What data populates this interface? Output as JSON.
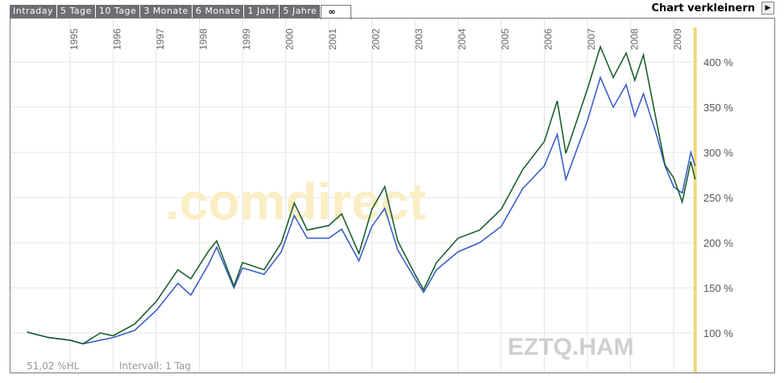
{
  "tabs": [
    "Intraday",
    "5 Tage",
    "10 Tage",
    "3 Monate",
    "6 Monate",
    "1 Jahr",
    "5 Jahre",
    "∞"
  ],
  "active_tab": "∞",
  "shrink_label": "Chart verkleinern",
  "watermark": ".comdirect",
  "symbol": "EZTQ.HAM",
  "footer": {
    "hl": "51,02 %HL",
    "interval": "Intervall: 1 Tag"
  },
  "colors": {
    "series1": "#1b5e2e",
    "series2": "#3a5fc8",
    "marker": "#f0d77a",
    "grid": "#e3e3e3"
  },
  "chart_data": {
    "type": "line",
    "xlim": [
      1993.6,
      2011.2
    ],
    "ylim": [
      55,
      449
    ],
    "x_ticks": [
      "1995",
      "1996",
      "1997",
      "1998",
      "1999",
      "2000",
      "2001",
      "2002",
      "2003",
      "2004",
      "2005",
      "2006",
      "2007",
      "2008",
      "2009"
    ],
    "y_ticks": [
      {
        "v": 100,
        "label": "100 %"
      },
      {
        "v": 150,
        "label": "150 %"
      },
      {
        "v": 200,
        "label": "200 %"
      },
      {
        "v": 250,
        "label": "250 %"
      },
      {
        "v": 300,
        "label": "300 %"
      },
      {
        "v": 350,
        "label": "350 %"
      },
      {
        "v": 400,
        "label": "400 %"
      }
    ],
    "grid": true,
    "marker_x": 2009.5,
    "series": [
      {
        "color": "#1b5e2e",
        "points": [
          [
            1994.0,
            101
          ],
          [
            1994.5,
            95
          ],
          [
            1995.0,
            92
          ],
          [
            1995.3,
            88
          ],
          [
            1995.7,
            100
          ],
          [
            1996.0,
            97
          ],
          [
            1996.5,
            110
          ],
          [
            1997.0,
            135
          ],
          [
            1997.5,
            170
          ],
          [
            1997.8,
            160
          ],
          [
            1998.2,
            190
          ],
          [
            1998.4,
            202
          ],
          [
            1998.8,
            152
          ],
          [
            1999.0,
            178
          ],
          [
            1999.5,
            170
          ],
          [
            1999.9,
            200
          ],
          [
            2000.2,
            244
          ],
          [
            2000.5,
            214
          ],
          [
            2001.0,
            219
          ],
          [
            2001.3,
            232
          ],
          [
            2001.7,
            188
          ],
          [
            2002.0,
            237
          ],
          [
            2002.3,
            262
          ],
          [
            2002.6,
            202
          ],
          [
            2003.0,
            165
          ],
          [
            2003.2,
            148
          ],
          [
            2003.5,
            178
          ],
          [
            2004.0,
            205
          ],
          [
            2004.5,
            214
          ],
          [
            2005.0,
            237
          ],
          [
            2005.5,
            281
          ],
          [
            2006.0,
            312
          ],
          [
            2006.3,
            357
          ],
          [
            2006.5,
            299
          ],
          [
            2007.0,
            370
          ],
          [
            2007.3,
            417
          ],
          [
            2007.6,
            383
          ],
          [
            2007.9,
            410
          ],
          [
            2008.1,
            380
          ],
          [
            2008.3,
            408
          ],
          [
            2008.6,
            335
          ],
          [
            2008.8,
            286
          ],
          [
            2009.0,
            272
          ],
          [
            2009.2,
            245
          ],
          [
            2009.4,
            290
          ],
          [
            2009.5,
            270
          ]
        ]
      },
      {
        "color": "#3a5fc8",
        "points": [
          [
            1994.0,
            101
          ],
          [
            1994.5,
            95
          ],
          [
            1995.0,
            92
          ],
          [
            1995.3,
            88
          ],
          [
            1995.7,
            92
          ],
          [
            1996.0,
            95
          ],
          [
            1996.5,
            103
          ],
          [
            1997.0,
            125
          ],
          [
            1997.5,
            155
          ],
          [
            1997.8,
            142
          ],
          [
            1998.2,
            175
          ],
          [
            1998.4,
            195
          ],
          [
            1998.8,
            150
          ],
          [
            1999.0,
            172
          ],
          [
            1999.5,
            165
          ],
          [
            1999.9,
            190
          ],
          [
            2000.2,
            230
          ],
          [
            2000.5,
            205
          ],
          [
            2001.0,
            205
          ],
          [
            2001.3,
            215
          ],
          [
            2001.7,
            180
          ],
          [
            2002.0,
            218
          ],
          [
            2002.3,
            238
          ],
          [
            2002.6,
            192
          ],
          [
            2003.0,
            160
          ],
          [
            2003.2,
            145
          ],
          [
            2003.5,
            170
          ],
          [
            2004.0,
            190
          ],
          [
            2004.5,
            200
          ],
          [
            2005.0,
            218
          ],
          [
            2005.5,
            260
          ],
          [
            2006.0,
            285
          ],
          [
            2006.3,
            320
          ],
          [
            2006.5,
            270
          ],
          [
            2007.0,
            335
          ],
          [
            2007.3,
            383
          ],
          [
            2007.6,
            350
          ],
          [
            2007.9,
            375
          ],
          [
            2008.1,
            340
          ],
          [
            2008.3,
            365
          ],
          [
            2008.6,
            320
          ],
          [
            2008.8,
            285
          ],
          [
            2009.0,
            262
          ],
          [
            2009.2,
            255
          ],
          [
            2009.4,
            300
          ],
          [
            2009.5,
            285
          ]
        ]
      }
    ]
  }
}
